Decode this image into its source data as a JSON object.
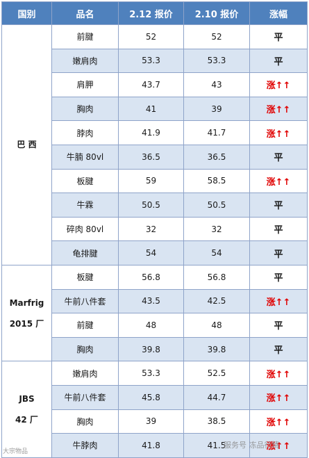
{
  "headers": [
    "国别",
    "品名",
    "2.12 报价",
    "2.10 报价",
    "涨幅"
  ],
  "groups": [
    {
      "country_lines": [
        "巴 西"
      ],
      "rows": [
        {
          "name": "前腱",
          "p212": "52",
          "p210": "52",
          "change": "平",
          "dir": "flat"
        },
        {
          "name": "嫩肩肉",
          "p212": "53.3",
          "p210": "53.3",
          "change": "平",
          "dir": "flat"
        },
        {
          "name": "肩胛",
          "p212": "43.7",
          "p210": "43",
          "change": "涨↑↑",
          "dir": "up"
        },
        {
          "name": "胸肉",
          "p212": "41",
          "p210": "39",
          "change": "涨↑↑",
          "dir": "up"
        },
        {
          "name": "脖肉",
          "p212": "41.9",
          "p210": "41.7",
          "change": "涨↑↑",
          "dir": "up"
        },
        {
          "name": "牛腩 80vl",
          "p212": "36.5",
          "p210": "36.5",
          "change": "平",
          "dir": "flat"
        },
        {
          "name": "板腱",
          "p212": "59",
          "p210": "58.5",
          "change": "涨↑↑",
          "dir": "up"
        },
        {
          "name": "牛霖",
          "p212": "50.5",
          "p210": "50.5",
          "change": "平",
          "dir": "flat"
        },
        {
          "name": "碎肉 80vl",
          "p212": "32",
          "p210": "32",
          "change": "平",
          "dir": "flat"
        },
        {
          "name": "龟排腱",
          "p212": "54",
          "p210": "54",
          "change": "平",
          "dir": "flat"
        }
      ]
    },
    {
      "country_lines": [
        "Marfrig",
        "2015 厂"
      ],
      "rows": [
        {
          "name": "板腱",
          "p212": "56.8",
          "p210": "56.8",
          "change": "平",
          "dir": "flat"
        },
        {
          "name": "牛前八件套",
          "p212": "43.5",
          "p210": "42.5",
          "change": "涨↑↑",
          "dir": "up"
        },
        {
          "name": "前腱",
          "p212": "48",
          "p210": "48",
          "change": "平",
          "dir": "flat"
        },
        {
          "name": "胸肉",
          "p212": "39.8",
          "p210": "39.8",
          "change": "平",
          "dir": "flat"
        }
      ]
    },
    {
      "country_lines": [
        "JBS",
        "42 厂"
      ],
      "rows": [
        {
          "name": "嫩肩肉",
          "p212": "53.3",
          "p210": "52.5",
          "change": "涨↑↑",
          "dir": "up"
        },
        {
          "name": "牛前八件套",
          "p212": "45.8",
          "p210": "44.7",
          "change": "涨↑↑",
          "dir": "up"
        },
        {
          "name": "胸肉",
          "p212": "39",
          "p210": "38.5",
          "change": "涨↑↑",
          "dir": "up"
        },
        {
          "name": "牛脖肉",
          "p212": "41.8",
          "p210": "41.5",
          "change": "涨↑↑",
          "dir": "up"
        }
      ]
    }
  ],
  "watermark_left": "大宗物品",
  "watermark_right": "服务号 冻品行情",
  "colors": {
    "header_bg": "#4f81bd",
    "band_bg": "#d9e4f2",
    "up_text": "#e00000"
  }
}
